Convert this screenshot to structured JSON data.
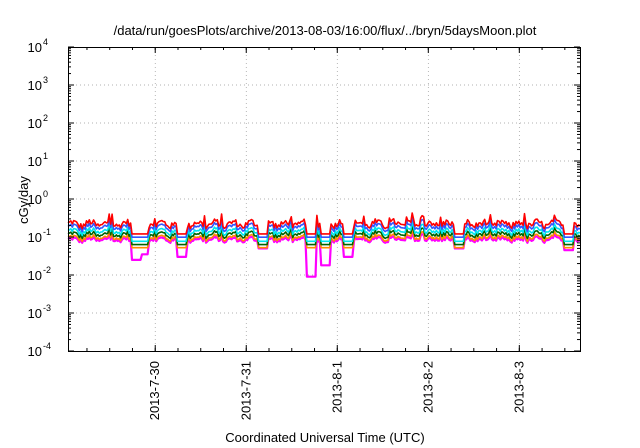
{
  "chart_data": {
    "type": "line",
    "title": "/data/run/goesPlots/archive/2013-08-03/16:00/flux/../bryn/5daysMoon.plot",
    "xlabel": "Coordinated Universal Time (UTC)",
    "ylabel": "cGy/day",
    "yscale": "log",
    "ylim": [
      0.0001,
      10000
    ],
    "xlim": [
      "2013-07-29 01:00",
      "2013-08-03 16:00"
    ],
    "x_ticks": [
      "2013-7-30",
      "2013-7-31",
      "2013-8-1",
      "2013-8-2",
      "2013-8-3"
    ],
    "y_ticks": [
      {
        "base": "10",
        "exp": "-4"
      },
      {
        "base": "10",
        "exp": "-3"
      },
      {
        "base": "10",
        "exp": "-2"
      },
      {
        "base": "10",
        "exp": "-1"
      },
      {
        "base": "10",
        "exp": "0"
      },
      {
        "base": "10",
        "exp": "1"
      },
      {
        "base": "10",
        "exp": "2"
      },
      {
        "base": "10",
        "exp": "3"
      },
      {
        "base": "10",
        "exp": "4"
      }
    ],
    "grid": true,
    "legend": "none",
    "series": [
      {
        "color": "#ff00ff",
        "level": 0.085,
        "fill": true
      },
      {
        "color": "#ff8c00",
        "level": 0.095
      },
      {
        "color": "#006400",
        "level": 0.115
      },
      {
        "color": "#00e5ee",
        "level": 0.14
      },
      {
        "color": "#3355ff",
        "level": 0.18
      },
      {
        "color": "#ff0000",
        "level": 0.22
      }
    ],
    "dips": [
      {
        "x": "2013-07-29 19:00",
        "y": 0.025
      },
      {
        "x": "2013-07-29 21:00",
        "y": 0.035
      },
      {
        "x": "2013-07-30 07:00",
        "y": 0.03
      },
      {
        "x": "2013-07-31 04:30",
        "y": 0.05
      },
      {
        "x": "2013-07-31 17:00",
        "y": 0.009
      },
      {
        "x": "2013-07-31 21:00",
        "y": 0.018
      },
      {
        "x": "2013-08-01 03:00",
        "y": 0.03
      },
      {
        "x": "2013-08-02 08:00",
        "y": 0.05
      },
      {
        "x": "2013-08-03 13:00",
        "y": 0.045
      }
    ]
  }
}
